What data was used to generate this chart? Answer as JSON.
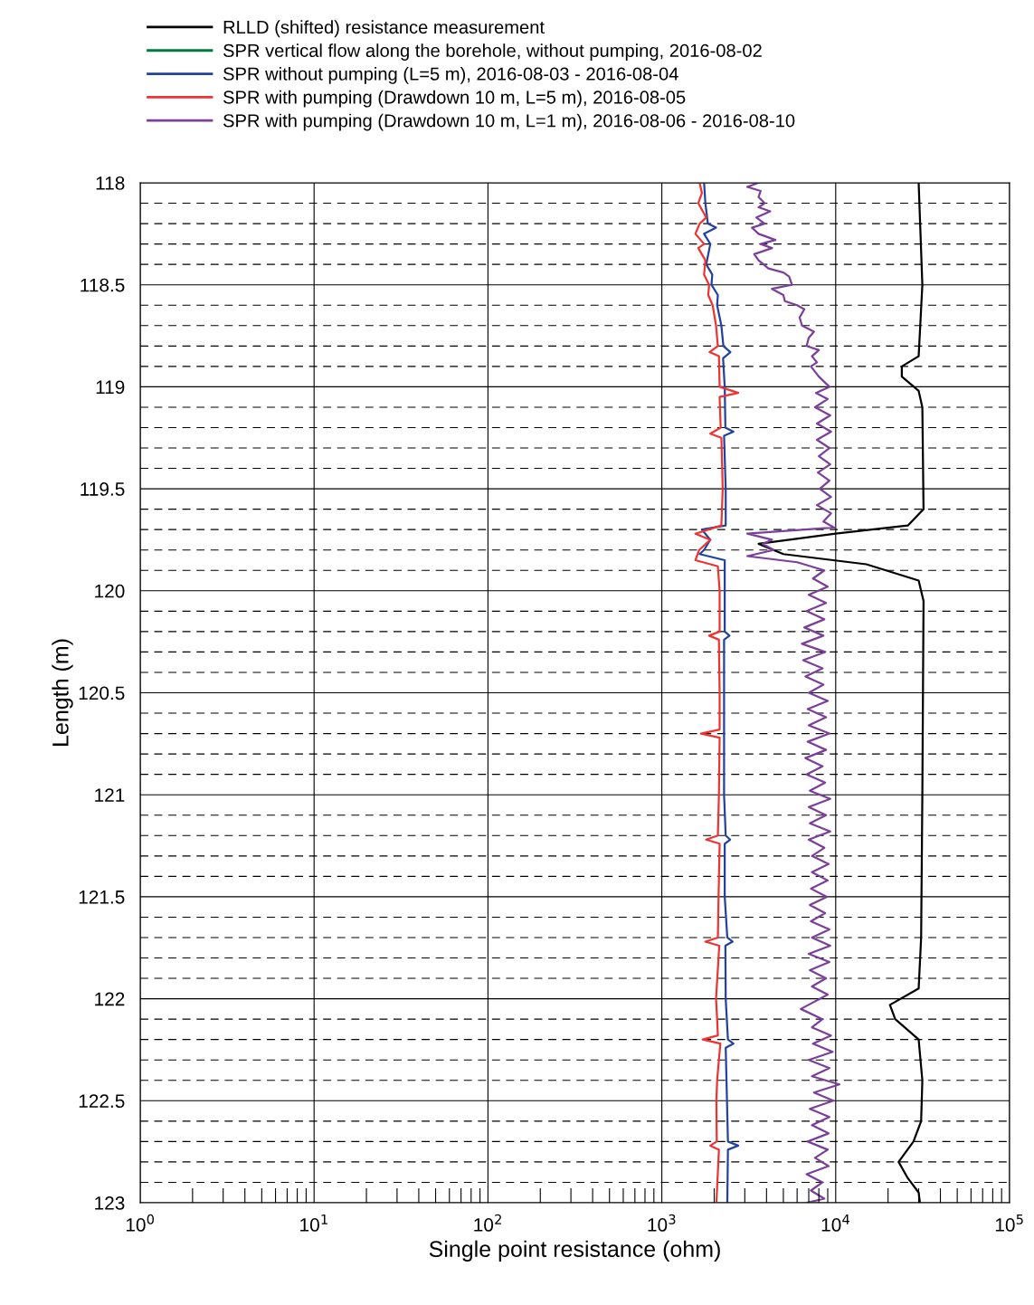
{
  "chart_data": {
    "type": "line",
    "xlabel": "Single point resistance (ohm)",
    "ylabel": "Length (m)",
    "log": "x",
    "grid": true,
    "legend": "top",
    "xlim": [
      1,
      100000
    ],
    "xticks": [
      {
        "value": 1,
        "label": "10$^{0}$"
      },
      {
        "value": 10,
        "label": "10$^{1}$"
      },
      {
        "value": 100,
        "label": "10$^{2}$"
      },
      {
        "value": 1000,
        "label": "10$^{3}$"
      },
      {
        "value": 10000,
        "label": "10$^{4}$"
      },
      {
        "value": 100000,
        "label": "10$^{5}$"
      }
    ],
    "ylim": [
      123,
      118
    ],
    "yticks": [
      118,
      118.5,
      119,
      119.5,
      120,
      120.5,
      121,
      121.5,
      122,
      122.5,
      123
    ],
    "ref_lines": [
      {
        "axis": "y",
        "value": 118.1,
        "line_style": "dashed",
        "color": "#000000"
      },
      {
        "axis": "y",
        "value": 118.2,
        "line_style": "dashed",
        "color": "#000000"
      },
      {
        "axis": "y",
        "value": 118.3,
        "line_style": "dashed",
        "color": "#000000"
      },
      {
        "axis": "y",
        "value": 118.4,
        "line_style": "dashed",
        "color": "#000000"
      },
      {
        "axis": "y",
        "value": 118.6,
        "line_style": "dashed",
        "color": "#000000"
      },
      {
        "axis": "y",
        "value": 118.7,
        "line_style": "dashed",
        "color": "#000000"
      },
      {
        "axis": "y",
        "value": 118.8,
        "line_style": "dashed",
        "color": "#000000"
      },
      {
        "axis": "y",
        "value": 118.9,
        "line_style": "dashed",
        "color": "#000000"
      },
      {
        "axis": "y",
        "value": 119.1,
        "line_style": "dashed",
        "color": "#000000"
      },
      {
        "axis": "y",
        "value": 119.2,
        "line_style": "dashed",
        "color": "#000000"
      },
      {
        "axis": "y",
        "value": 119.3,
        "line_style": "dashed",
        "color": "#000000"
      },
      {
        "axis": "y",
        "value": 119.4,
        "line_style": "dashed",
        "color": "#000000"
      },
      {
        "axis": "y",
        "value": 119.6,
        "line_style": "dashed",
        "color": "#000000"
      },
      {
        "axis": "y",
        "value": 119.7,
        "line_style": "dashed",
        "color": "#000000"
      },
      {
        "axis": "y",
        "value": 119.8,
        "line_style": "dashed",
        "color": "#000000"
      },
      {
        "axis": "y",
        "value": 119.9,
        "line_style": "dashed",
        "color": "#000000"
      },
      {
        "axis": "y",
        "value": 120.1,
        "line_style": "dashed",
        "color": "#000000"
      },
      {
        "axis": "y",
        "value": 120.2,
        "line_style": "dashed",
        "color": "#000000"
      },
      {
        "axis": "y",
        "value": 120.3,
        "line_style": "dashed",
        "color": "#000000"
      },
      {
        "axis": "y",
        "value": 120.4,
        "line_style": "dashed",
        "color": "#000000"
      },
      {
        "axis": "y",
        "value": 120.6,
        "line_style": "dashed",
        "color": "#000000"
      },
      {
        "axis": "y",
        "value": 120.7,
        "line_style": "dashed",
        "color": "#000000"
      },
      {
        "axis": "y",
        "value": 120.8,
        "line_style": "dashed",
        "color": "#000000"
      },
      {
        "axis": "y",
        "value": 120.9,
        "line_style": "dashed",
        "color": "#000000"
      },
      {
        "axis": "y",
        "value": 121.1,
        "line_style": "dashed",
        "color": "#000000"
      },
      {
        "axis": "y",
        "value": 121.2,
        "line_style": "dashed",
        "color": "#000000"
      },
      {
        "axis": "y",
        "value": 121.3,
        "line_style": "dashed",
        "color": "#000000"
      },
      {
        "axis": "y",
        "value": 121.4,
        "line_style": "dashed",
        "color": "#000000"
      },
      {
        "axis": "y",
        "value": 121.6,
        "line_style": "dashed",
        "color": "#000000"
      },
      {
        "axis": "y",
        "value": 121.7,
        "line_style": "dashed",
        "color": "#000000"
      },
      {
        "axis": "y",
        "value": 121.8,
        "line_style": "dashed",
        "color": "#000000"
      },
      {
        "axis": "y",
        "value": 121.9,
        "line_style": "dashed",
        "color": "#000000"
      },
      {
        "axis": "y",
        "value": 122.1,
        "line_style": "dashed",
        "color": "#000000"
      },
      {
        "axis": "y",
        "value": 122.2,
        "line_style": "dashed",
        "color": "#000000"
      },
      {
        "axis": "y",
        "value": 122.3,
        "line_style": "dashed",
        "color": "#000000"
      },
      {
        "axis": "y",
        "value": 122.4,
        "line_style": "dashed",
        "color": "#000000"
      },
      {
        "axis": "y",
        "value": 122.6,
        "line_style": "dashed",
        "color": "#000000"
      },
      {
        "axis": "y",
        "value": 122.7,
        "line_style": "dashed",
        "color": "#000000"
      },
      {
        "axis": "y",
        "value": 122.8,
        "line_style": "dashed",
        "color": "#000000"
      },
      {
        "axis": "y",
        "value": 122.9,
        "line_style": "dashed",
        "color": "#000000"
      }
    ],
    "series": [
      {
        "name": "RLLD (shifted) resistance measurement",
        "color": "#000000",
        "x": [
          30000,
          31500,
          30000,
          24000,
          24000,
          30000,
          31500,
          32000,
          26000,
          10000,
          3600,
          5000,
          15000,
          30000,
          32000,
          31500,
          31000,
          30000,
          20500,
          22000,
          30000,
          31500,
          31000,
          28000,
          23000,
          26000,
          30000,
          30500
        ],
        "values": [
          118,
          118.5,
          118.85,
          118.9,
          118.95,
          119.02,
          119.1,
          119.6,
          119.68,
          119.72,
          119.77,
          119.82,
          119.87,
          119.95,
          120.05,
          121,
          121.7,
          121.95,
          122.03,
          122.1,
          122.2,
          122.4,
          122.6,
          122.7,
          122.8,
          122.88,
          122.95,
          123
        ]
      },
      {
        "name": "SPR vertical flow along the borehole, without pumping, 2016-08-02",
        "color": "#007a3d"
      },
      {
        "name": "SPR without pumping (L=5 m), 2016-08-03 - 2016-08-04",
        "color": "#2342a0",
        "x": [
          1750,
          1780,
          1840,
          2050,
          1750,
          1900,
          1800,
          1950,
          1930,
          2100,
          2080,
          2200,
          2260,
          2480,
          2250,
          2300,
          2320,
          2580,
          2280,
          2330,
          2330,
          1700,
          1900,
          1750,
          1650,
          2300,
          2300,
          2300,
          2450,
          2280,
          2280,
          2330,
          2470,
          2300,
          2300,
          2380,
          2550,
          2320,
          2330,
          2400,
          2580,
          2330,
          2370,
          2400,
          2750,
          2400,
          2380
        ],
        "values": [
          118.0,
          118.1,
          118.2,
          118.22,
          118.25,
          118.3,
          118.4,
          118.45,
          118.5,
          118.55,
          118.6,
          118.7,
          118.8,
          118.83,
          118.86,
          119.0,
          119.2,
          119.22,
          119.24,
          119.5,
          119.68,
          119.7,
          119.75,
          119.8,
          119.82,
          119.85,
          120.0,
          120.2,
          120.22,
          120.24,
          121.0,
          121.2,
          121.22,
          121.24,
          121.5,
          121.7,
          121.72,
          121.74,
          122.0,
          122.2,
          122.22,
          122.24,
          122.5,
          122.7,
          122.72,
          122.74,
          123.0
        ]
      },
      {
        "name": "SPR with pumping (Drawdown 10 m, L=5 m), 2016-08-05",
        "color": "#ee3333",
        "x": [
          1650,
          1700,
          1620,
          1800,
          1650,
          1560,
          1750,
          1620,
          1780,
          1750,
          1870,
          1850,
          1960,
          2050,
          2100,
          1880,
          2130,
          2150,
          2750,
          2150,
          2180,
          1900,
          2200,
          2240,
          2200,
          1560,
          1900,
          1640,
          1560,
          2100,
          2150,
          2150,
          1870,
          2130,
          2150,
          2150,
          1680,
          2150,
          2130,
          2100,
          1800,
          2150,
          2120,
          2100,
          1780,
          2140,
          2050,
          2080,
          2100,
          1720,
          2170,
          2080,
          2060,
          2070,
          1900,
          2130,
          2060
        ],
        "values": [
          118.0,
          118.05,
          118.1,
          118.17,
          118.2,
          118.25,
          118.3,
          118.32,
          118.38,
          118.45,
          118.5,
          118.55,
          118.6,
          118.7,
          118.8,
          118.83,
          118.85,
          119.0,
          119.03,
          119.05,
          119.2,
          119.23,
          119.25,
          119.5,
          119.68,
          119.72,
          119.75,
          119.8,
          119.85,
          119.88,
          120.0,
          120.2,
          120.22,
          120.24,
          120.5,
          120.68,
          120.7,
          120.72,
          121.0,
          121.2,
          121.22,
          121.24,
          121.5,
          121.7,
          121.72,
          121.74,
          122.0,
          122.1,
          122.18,
          122.2,
          122.22,
          122.4,
          122.5,
          122.7,
          122.72,
          122.74,
          123.0
        ]
      },
      {
        "name": "SPR with pumping (Drawdown 10 m, L=1 m), 2016-08-06 - 2016-08-10",
        "color": "#7b3f9b",
        "x": [
          3600,
          3100,
          3700,
          3600,
          3900,
          3600,
          4200,
          3500,
          3900,
          3300,
          3600,
          4500,
          3700,
          4300,
          3400,
          3600,
          4100,
          5000,
          5400,
          5600,
          4300,
          5000,
          5100,
          6000,
          6600,
          6200,
          6400,
          7500,
          7000,
          6800,
          8000,
          7300,
          7800,
          7200,
          8000,
          9200,
          7700,
          9000,
          7600,
          9300,
          7800,
          9400,
          7800,
          9200,
          8000,
          9300,
          7900,
          9200,
          8100,
          9400,
          7800,
          9400,
          8500,
          9800,
          3100,
          4300,
          3800,
          4400,
          3100,
          6000,
          8600,
          7400,
          9000,
          7000,
          8800,
          6800,
          8600,
          6600,
          8500,
          6400,
          8700,
          6500,
          8400,
          6700,
          8500,
          7000,
          9000,
          6900,
          8800,
          7000,
          9200,
          6900,
          8800,
          6700,
          8400,
          6800,
          8700,
          7100,
          9300,
          7000,
          8800,
          7100,
          9300,
          7000,
          8600,
          7300,
          9100,
          7300,
          9000,
          7200,
          8900,
          7100,
          8700,
          7200,
          9200,
          7300,
          9300,
          7000,
          9200,
          7100,
          8800,
          7300,
          9000,
          6300,
          8400,
          7300,
          9400,
          7400,
          9600,
          7000,
          9200,
          7300,
          10500,
          7500,
          9700,
          7100,
          9200,
          7300,
          9100,
          6900,
          9000,
          7600,
          9100,
          6800,
          8400,
          7200,
          8600,
          6800
        ],
        "values": [
          118.0,
          118.02,
          118.04,
          118.07,
          118.1,
          118.12,
          118.14,
          118.17,
          118.2,
          118.22,
          118.25,
          118.28,
          118.3,
          118.32,
          118.35,
          118.38,
          118.42,
          118.44,
          118.46,
          118.5,
          118.52,
          118.55,
          118.58,
          118.6,
          118.62,
          118.66,
          118.7,
          118.73,
          118.76,
          118.8,
          118.82,
          118.85,
          118.88,
          118.9,
          118.95,
          119.0,
          119.03,
          119.06,
          119.1,
          119.14,
          119.18,
          119.22,
          119.26,
          119.3,
          119.34,
          119.38,
          119.42,
          119.46,
          119.5,
          119.54,
          119.58,
          119.62,
          119.66,
          119.69,
          119.72,
          119.75,
          119.77,
          119.8,
          119.83,
          119.86,
          119.9,
          119.94,
          119.98,
          120.02,
          120.06,
          120.1,
          120.14,
          120.18,
          120.22,
          120.26,
          120.3,
          120.34,
          120.38,
          120.42,
          120.46,
          120.5,
          120.54,
          120.58,
          120.62,
          120.66,
          120.7,
          120.74,
          120.78,
          120.82,
          120.86,
          120.9,
          120.94,
          120.98,
          121.02,
          121.06,
          121.1,
          121.14,
          121.18,
          121.22,
          121.26,
          121.3,
          121.34,
          121.38,
          121.42,
          121.46,
          121.5,
          121.54,
          121.58,
          121.62,
          121.66,
          121.7,
          121.74,
          121.78,
          121.82,
          121.86,
          121.9,
          121.94,
          121.98,
          122.05,
          122.1,
          122.14,
          122.18,
          122.22,
          122.26,
          122.3,
          122.34,
          122.38,
          122.42,
          122.46,
          122.5,
          122.54,
          122.58,
          122.62,
          122.66,
          122.7,
          122.74,
          122.78,
          122.82,
          122.86,
          122.9,
          122.94,
          122.98,
          123.0
        ]
      }
    ]
  }
}
